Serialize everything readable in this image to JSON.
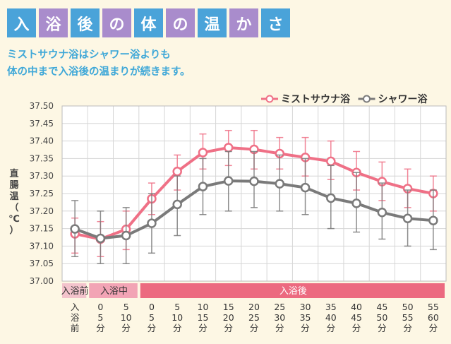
{
  "title": {
    "chars": [
      "入",
      "浴",
      "後",
      "の",
      "体",
      "の",
      "温",
      "か",
      "さ"
    ],
    "box_colors": [
      "#4aa3d9",
      "#a98ccc",
      "#4aa3d9",
      "#a98ccc",
      "#4aa3d9",
      "#a98ccc",
      "#4aa3d9",
      "#a98ccc",
      "#4aa3d9"
    ]
  },
  "subtitle": {
    "line1": "ミストサウナ浴はシャワー浴よりも",
    "line2": "体の中まで入浴後の温まりが続きます。"
  },
  "colors": {
    "mist": "#ef7086",
    "shower": "#7a7a7a",
    "error": "#999999",
    "phase_pre": "#f3c3cc",
    "phase_mid": "#f2a4b5",
    "phase_after": "#ec6a80"
  },
  "chart_data": {
    "type": "line",
    "ylabel": "直腸温（℃）",
    "ylim": [
      37.0,
      37.5
    ],
    "yticks": [
      "37.50",
      "37.45",
      "37.40",
      "37.35",
      "37.30",
      "37.25",
      "37.20",
      "37.15",
      "37.10",
      "37.05",
      "37.00"
    ],
    "grid": true,
    "legend_position": "top-right",
    "categories": [
      [
        "入",
        "浴",
        "前"
      ],
      [
        "0",
        "5",
        "分"
      ],
      [
        "5",
        "10",
        "分"
      ],
      [
        "0",
        "5",
        "分"
      ],
      [
        "5",
        "10",
        "分"
      ],
      [
        "10",
        "15",
        "分"
      ],
      [
        "15",
        "20",
        "分"
      ],
      [
        "20",
        "25",
        "分"
      ],
      [
        "25",
        "30",
        "分"
      ],
      [
        "30",
        "35",
        "分"
      ],
      [
        "35",
        "40",
        "分"
      ],
      [
        "40",
        "45",
        "分"
      ],
      [
        "45",
        "50",
        "分"
      ],
      [
        "50",
        "55",
        "分"
      ],
      [
        "55",
        "60",
        "分"
      ]
    ],
    "phases": [
      {
        "label": "入浴前",
        "start": 0,
        "end": 0,
        "color_key": "phase_pre"
      },
      {
        "label": "入浴中",
        "start": 1,
        "end": 2,
        "color_key": "phase_mid"
      },
      {
        "label": "入浴後",
        "start": 3,
        "end": 14,
        "color_key": "phase_after"
      }
    ],
    "series": [
      {
        "name": "ミストサウナ浴",
        "color_key": "mist",
        "values": [
          37.135,
          37.12,
          37.148,
          37.235,
          37.313,
          37.367,
          37.381,
          37.376,
          37.364,
          37.353,
          37.342,
          37.31,
          37.284,
          37.264,
          37.25
        ],
        "error_low": [
          37.08,
          37.07,
          37.09,
          37.19,
          37.26,
          37.32,
          37.33,
          37.32,
          37.32,
          37.3,
          37.29,
          37.26,
          37.23,
          37.21,
          37.2
        ],
        "error_high": [
          37.18,
          37.17,
          37.2,
          37.28,
          37.36,
          37.42,
          37.43,
          37.43,
          37.41,
          37.41,
          37.4,
          37.37,
          37.34,
          37.32,
          37.3
        ]
      },
      {
        "name": "シャワー浴",
        "color_key": "shower",
        "values": [
          37.149,
          37.122,
          37.13,
          37.165,
          37.219,
          37.27,
          37.286,
          37.285,
          37.278,
          37.267,
          37.237,
          37.222,
          37.196,
          37.179,
          37.173
        ],
        "error_low": [
          37.07,
          37.05,
          37.05,
          37.08,
          37.13,
          37.19,
          37.2,
          37.21,
          37.2,
          37.19,
          37.15,
          37.14,
          37.12,
          37.1,
          37.09
        ],
        "error_high": [
          37.23,
          37.2,
          37.21,
          37.25,
          37.3,
          37.35,
          37.37,
          37.37,
          37.36,
          37.35,
          37.33,
          37.31,
          37.28,
          37.26,
          37.26
        ]
      }
    ]
  }
}
